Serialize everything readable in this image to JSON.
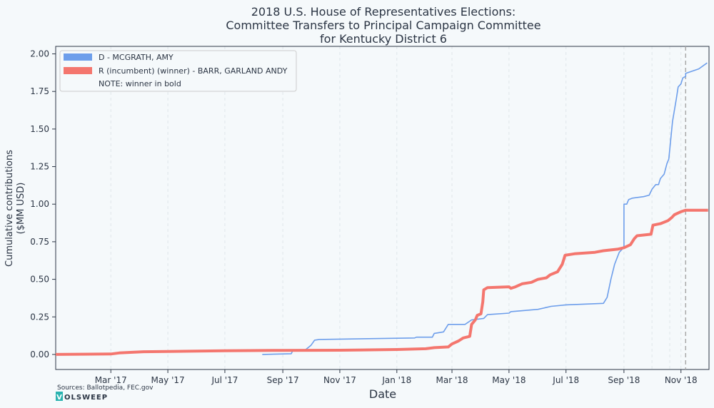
{
  "chart_data": {
    "type": "line",
    "title_lines": [
      "2018 U.S. House of Representatives Elections:",
      "Committee Transfers to Principal Campaign Committee",
      "for Kentucky District 6"
    ],
    "xlabel": "Date",
    "ylabel_lines": [
      "Cumulative contributions",
      "($MM USD)"
    ],
    "x_range": [
      "2017-01-01",
      "2018-12-01"
    ],
    "ylim": [
      -0.1,
      2.05
    ],
    "yticks": [
      0.0,
      0.25,
      0.5,
      0.75,
      1.0,
      1.25,
      1.5,
      1.75,
      2.0
    ],
    "ytick_labels": [
      "0.00",
      "0.25",
      "0.50",
      "0.75",
      "1.00",
      "1.25",
      "1.50",
      "1.75",
      "2.00"
    ],
    "xticks": [
      {
        "date": "2017-03-01",
        "label": "Mar '17"
      },
      {
        "date": "2017-05-01",
        "label": "May '17"
      },
      {
        "date": "2017-07-01",
        "label": "Jul '17"
      },
      {
        "date": "2017-09-01",
        "label": "Sep '17"
      },
      {
        "date": "2017-11-01",
        "label": "Nov '17"
      },
      {
        "date": "2018-01-01",
        "label": "Jan '18"
      },
      {
        "date": "2018-03-01",
        "label": "Mar '18"
      },
      {
        "date": "2018-05-01",
        "label": "May '18"
      },
      {
        "date": "2018-07-01",
        "label": "Jul '18"
      },
      {
        "date": "2018-09-01",
        "label": "Sep '18"
      },
      {
        "date": "2018-11-01",
        "label": "Nov '18"
      }
    ],
    "extra_gridlines": [
      "2018-10-01",
      "2018-10-20"
    ],
    "election_date": "2018-11-06",
    "grid": true,
    "legend_position": "top-left",
    "legend_note": "NOTE: winner in bold",
    "series": [
      {
        "name": "D - MCGRATH, AMY",
        "color": "#6d9eeb",
        "bold": false,
        "points": [
          [
            "2017-08-10",
            0.0
          ],
          [
            "2017-09-10",
            0.005
          ],
          [
            "2017-09-12",
            0.03
          ],
          [
            "2017-09-25",
            0.03
          ],
          [
            "2017-10-01",
            0.06
          ],
          [
            "2017-10-05",
            0.095
          ],
          [
            "2017-10-10",
            0.1
          ],
          [
            "2018-01-20",
            0.11
          ],
          [
            "2018-01-22",
            0.115
          ],
          [
            "2018-02-08",
            0.115
          ],
          [
            "2018-02-10",
            0.14
          ],
          [
            "2018-02-20",
            0.15
          ],
          [
            "2018-02-25",
            0.2
          ],
          [
            "2018-03-15",
            0.2
          ],
          [
            "2018-03-22",
            0.23
          ],
          [
            "2018-04-04",
            0.24
          ],
          [
            "2018-04-08",
            0.265
          ],
          [
            "2018-05-01",
            0.275
          ],
          [
            "2018-05-03",
            0.285
          ],
          [
            "2018-06-01",
            0.3
          ],
          [
            "2018-06-15",
            0.32
          ],
          [
            "2018-07-01",
            0.33
          ],
          [
            "2018-08-10",
            0.34
          ],
          [
            "2018-08-14",
            0.38
          ],
          [
            "2018-08-18",
            0.5
          ],
          [
            "2018-08-22",
            0.6
          ],
          [
            "2018-08-27",
            0.68
          ],
          [
            "2018-08-30",
            0.7
          ],
          [
            "2018-09-01",
            0.72
          ],
          [
            "2018-09-01",
            1.0
          ],
          [
            "2018-09-04",
            1.0
          ],
          [
            "2018-09-06",
            1.03
          ],
          [
            "2018-09-10",
            1.04
          ],
          [
            "2018-09-22",
            1.05
          ],
          [
            "2018-09-28",
            1.06
          ],
          [
            "2018-10-01",
            1.1
          ],
          [
            "2018-10-05",
            1.13
          ],
          [
            "2018-10-08",
            1.13
          ],
          [
            "2018-10-10",
            1.17
          ],
          [
            "2018-10-14",
            1.2
          ],
          [
            "2018-10-17",
            1.27
          ],
          [
            "2018-10-19",
            1.3
          ],
          [
            "2018-10-23",
            1.55
          ],
          [
            "2018-10-27",
            1.7
          ],
          [
            "2018-10-29",
            1.78
          ],
          [
            "2018-11-01",
            1.8
          ],
          [
            "2018-11-03",
            1.84
          ],
          [
            "2018-11-06",
            1.85
          ],
          [
            "2018-11-06",
            1.87
          ],
          [
            "2018-11-20",
            1.9
          ],
          [
            "2018-11-29",
            1.94
          ]
        ]
      },
      {
        "name": "R (incumbent) (winner) - BARR, GARLAND ANDY",
        "color": "#f4766e",
        "bold": true,
        "points": [
          [
            "2017-01-01",
            0.0
          ],
          [
            "2017-03-01",
            0.003
          ],
          [
            "2017-03-10",
            0.01
          ],
          [
            "2017-04-05",
            0.018
          ],
          [
            "2017-05-01",
            0.02
          ],
          [
            "2017-07-01",
            0.025
          ],
          [
            "2017-09-01",
            0.027
          ],
          [
            "2017-11-01",
            0.028
          ],
          [
            "2018-01-01",
            0.033
          ],
          [
            "2018-02-01",
            0.038
          ],
          [
            "2018-02-10",
            0.045
          ],
          [
            "2018-02-25",
            0.05
          ],
          [
            "2018-03-01",
            0.07
          ],
          [
            "2018-03-08",
            0.09
          ],
          [
            "2018-03-13",
            0.11
          ],
          [
            "2018-03-20",
            0.12
          ],
          [
            "2018-03-22",
            0.2
          ],
          [
            "2018-03-26",
            0.23
          ],
          [
            "2018-03-28",
            0.26
          ],
          [
            "2018-04-01",
            0.27
          ],
          [
            "2018-04-03",
            0.35
          ],
          [
            "2018-04-04",
            0.43
          ],
          [
            "2018-04-08",
            0.445
          ],
          [
            "2018-05-01",
            0.45
          ],
          [
            "2018-05-03",
            0.44
          ],
          [
            "2018-05-08",
            0.45
          ],
          [
            "2018-05-15",
            0.47
          ],
          [
            "2018-05-25",
            0.48
          ],
          [
            "2018-06-01",
            0.5
          ],
          [
            "2018-06-10",
            0.51
          ],
          [
            "2018-06-14",
            0.53
          ],
          [
            "2018-06-22",
            0.55
          ],
          [
            "2018-06-27",
            0.6
          ],
          [
            "2018-06-30",
            0.66
          ],
          [
            "2018-07-10",
            0.67
          ],
          [
            "2018-08-01",
            0.68
          ],
          [
            "2018-08-10",
            0.69
          ],
          [
            "2018-08-25",
            0.7
          ],
          [
            "2018-09-01",
            0.71
          ],
          [
            "2018-09-08",
            0.73
          ],
          [
            "2018-09-12",
            0.77
          ],
          [
            "2018-09-15",
            0.79
          ],
          [
            "2018-09-30",
            0.8
          ],
          [
            "2018-10-02",
            0.86
          ],
          [
            "2018-10-10",
            0.87
          ],
          [
            "2018-10-18",
            0.89
          ],
          [
            "2018-10-22",
            0.91
          ],
          [
            "2018-10-25",
            0.93
          ],
          [
            "2018-11-01",
            0.95
          ],
          [
            "2018-11-06",
            0.96
          ],
          [
            "2018-11-30",
            0.96
          ]
        ]
      }
    ]
  },
  "footer": {
    "sources": "Sources: Ballotpedia, FEC.gov",
    "logo_mark": "V",
    "logo_text": "OLSWEEP"
  }
}
